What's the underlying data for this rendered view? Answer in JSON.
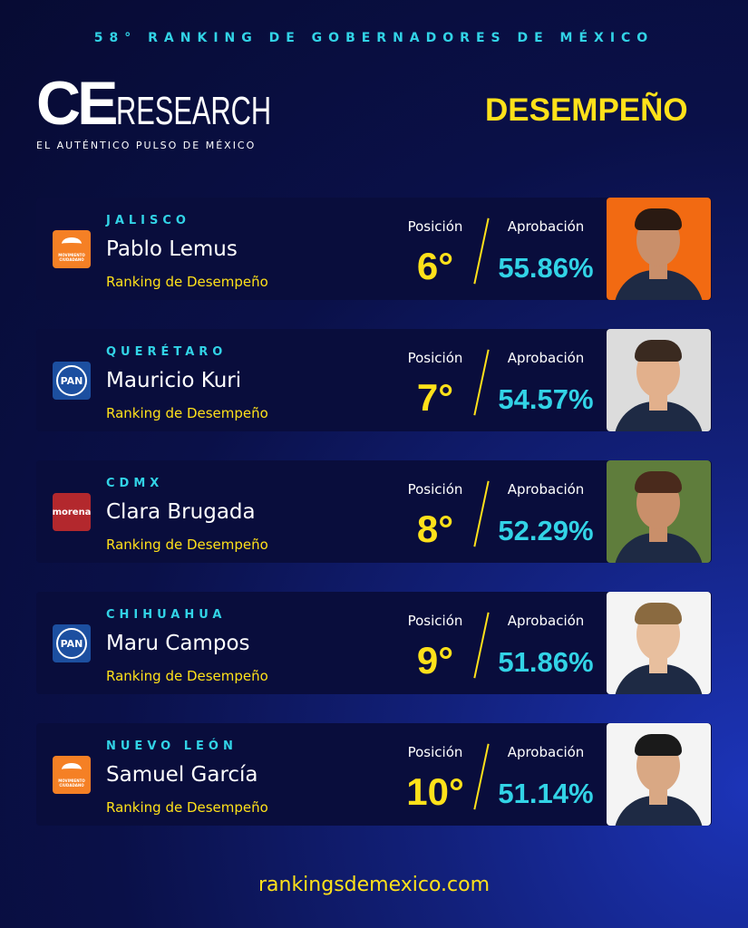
{
  "header": {
    "title": "58° RANKING DE GOBERNADORES DE MÉXICO",
    "logo": {
      "mark": "CE",
      "word": "RESEARCH"
    },
    "tagline": "EL AUTÉNTICO PULSO DE MÉXICO",
    "section": "DESEMPEÑO"
  },
  "cards": [
    {
      "state": "JALISCO",
      "name": "Pablo Lemus",
      "subtitle": "Ranking de Desempeño",
      "party": "MOVIMIENTO CIUDADANO",
      "position_label": "Posición",
      "position": "6°",
      "approval_label": "Aprobación",
      "approval": "55.86%"
    },
    {
      "state": "QUERÉTARO",
      "name": "Mauricio Kuri",
      "subtitle": "Ranking de Desempeño",
      "party": "PAN",
      "position_label": "Posición",
      "position": "7°",
      "approval_label": "Aprobación",
      "approval": "54.57%"
    },
    {
      "state": "CDMX",
      "name": "Clara Brugada",
      "subtitle": "Ranking de Desempeño",
      "party": "morena",
      "position_label": "Posición",
      "position": "8°",
      "approval_label": "Aprobación",
      "approval": "52.29%"
    },
    {
      "state": "CHIHUAHUA",
      "name": "Maru Campos",
      "subtitle": "Ranking de Desempeño",
      "party": "PAN",
      "position_label": "Posición",
      "position": "9°",
      "approval_label": "Aprobación",
      "approval": "51.86%"
    },
    {
      "state": "NUEVO LEÓN",
      "name": "Samuel García",
      "subtitle": "Ranking de Desempeño",
      "party": "MOVIMIENTO CIUDADANO",
      "position_label": "Posición",
      "position": "10°",
      "approval_label": "Aprobación",
      "approval": "51.14%"
    }
  ],
  "footer": "rankingsdemexico.com"
}
